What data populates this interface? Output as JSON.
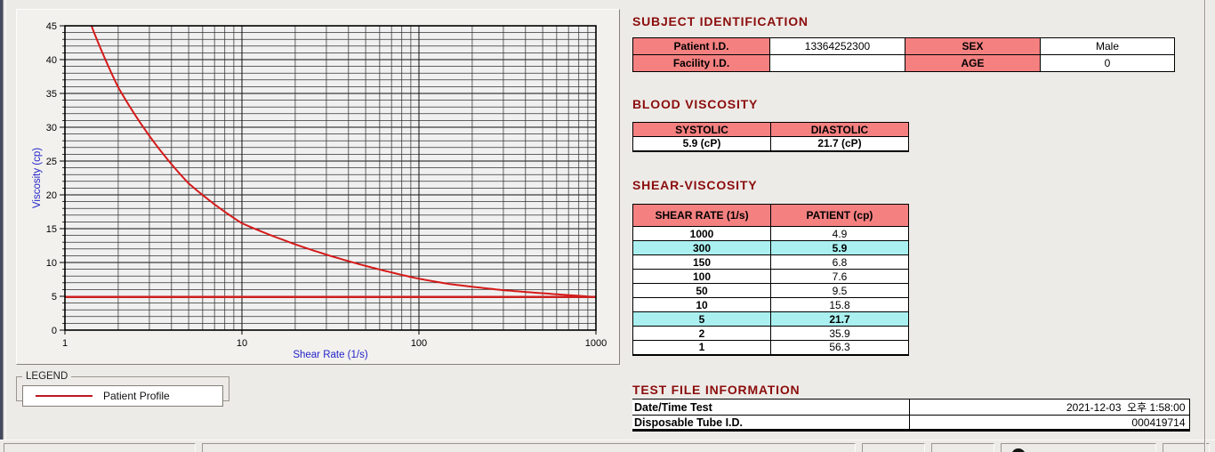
{
  "colors": {
    "section_title": "#8B0D0D",
    "table_header_pink": "#F58080",
    "row_highlight_cyan": "#ABF0F0",
    "curve_red": "#D61A1A",
    "baseline_red": "#CC2020",
    "axis_label_blue": "#2424C8"
  },
  "subject_identification": {
    "title": "SUBJECT IDENTIFICATION",
    "rows": [
      {
        "label": "Patient I.D.",
        "value": "13364252300",
        "label2": "SEX",
        "value2": "Male"
      },
      {
        "label": "Facility I.D.",
        "value": "",
        "label2": "AGE",
        "value2": "0"
      }
    ]
  },
  "blood_viscosity": {
    "title": "BLOOD VISCOSITY",
    "headers": [
      "SYSTOLIC",
      "DIASTOLIC"
    ],
    "values": [
      "5.9 (cP)",
      "21.7 (cP)"
    ]
  },
  "shear_viscosity": {
    "title": "SHEAR-VISCOSITY",
    "headers": [
      "SHEAR RATE (1/s)",
      "PATIENT (cp)"
    ],
    "rows": [
      {
        "rate": "1000",
        "value": "4.9",
        "highlight": false
      },
      {
        "rate": "300",
        "value": "5.9",
        "highlight": true
      },
      {
        "rate": "150",
        "value": "6.8",
        "highlight": false
      },
      {
        "rate": "100",
        "value": "7.6",
        "highlight": false
      },
      {
        "rate": "50",
        "value": "9.5",
        "highlight": false
      },
      {
        "rate": "10",
        "value": "15.8",
        "highlight": false
      },
      {
        "rate": "5",
        "value": "21.7",
        "highlight": true
      },
      {
        "rate": "2",
        "value": "35.9",
        "highlight": false
      },
      {
        "rate": "1",
        "value": "56.3",
        "highlight": false
      }
    ]
  },
  "test_file_information": {
    "title": "TEST FILE INFORMATION",
    "rows": [
      {
        "label": "Date/Time Test",
        "value": "2021-12-03  오후 1:58:00"
      },
      {
        "label": "Disposable Tube I.D.",
        "value": "000419714"
      }
    ]
  },
  "legend": {
    "group_label": "LEGEND",
    "series_label": "Patient Profile"
  },
  "chart_data": {
    "type": "line",
    "title": "",
    "xlabel": "Shear Rate (1/s)",
    "ylabel": "Viscosity (cp)",
    "x_scale": "log",
    "xlim": [
      1,
      1000
    ],
    "ylim": [
      0,
      45
    ],
    "x_ticks": [
      1,
      10,
      100,
      1000
    ],
    "y_ticks": [
      0,
      5,
      10,
      15,
      20,
      25,
      30,
      35,
      40,
      45
    ],
    "grid": "on",
    "legend_position": "below-chart-left",
    "series": [
      {
        "name": "Patient Profile",
        "color": "#D61A1A",
        "x": [
          1,
          2,
          5,
          10,
          50,
          100,
          150,
          300,
          1000
        ],
        "y": [
          56.3,
          35.9,
          21.7,
          15.8,
          9.5,
          7.6,
          6.8,
          5.9,
          4.9
        ]
      },
      {
        "name": "Plateau baseline",
        "color": "#CC2020",
        "y_const": 4.9,
        "x_range": [
          1,
          1000
        ]
      }
    ]
  }
}
